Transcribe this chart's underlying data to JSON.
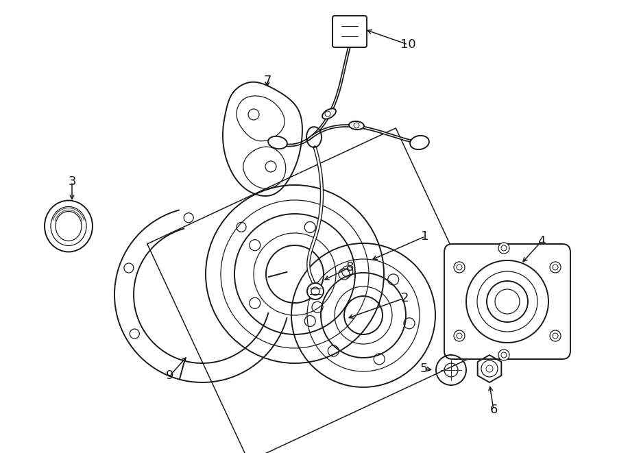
{
  "bg_color": "#ffffff",
  "line_color": "#1a1a1a",
  "fig_width": 9.0,
  "fig_height": 6.61,
  "dpi": 100,
  "lw_main": 1.4,
  "lw_thin": 0.9,
  "label_fontsize": 13
}
